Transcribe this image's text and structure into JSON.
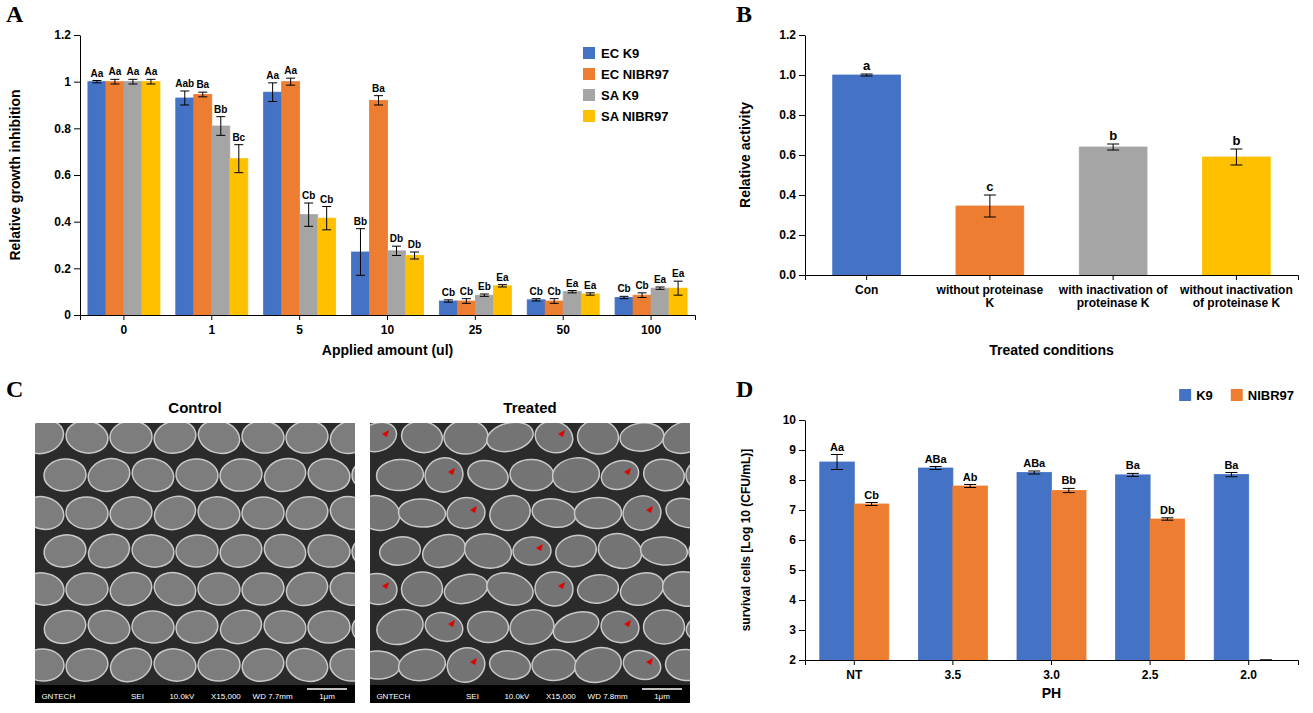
{
  "chart_data": [
    {
      "type": "bar",
      "panel": "A",
      "x_label": "Applied amount (ul)",
      "y_label": "Relative growth inhibition",
      "categories": [
        "0",
        "1",
        "5",
        "10",
        "25",
        "50",
        "100"
      ],
      "ylim": [
        0,
        1.2
      ],
      "yticks": [
        0,
        0.2,
        0.4,
        0.6,
        0.8,
        1,
        1.2
      ],
      "grid": false,
      "legend": "top-right",
      "series": [
        {
          "name": "EC K9",
          "color": "#4472c4",
          "values": [
            1,
            0.93,
            0.955,
            0.27,
            0.06,
            0.065,
            0.075
          ],
          "errors": [
            0.005,
            0.03,
            0.04,
            0.1,
            0.005,
            0.005,
            0.005
          ],
          "letters": [
            "Aa",
            "Aab",
            "Aa",
            "Bb",
            "Cb",
            "Cb",
            "Cb"
          ]
        },
        {
          "name": "EC NIBR97",
          "color": "#ed7d31",
          "values": [
            1,
            0.945,
            1.0,
            0.92,
            0.06,
            0.06,
            0.085
          ],
          "errors": [
            0.01,
            0.01,
            0.015,
            0.02,
            0.01,
            0.01,
            0.01
          ],
          "letters": [
            "Aa",
            "Ba",
            "Aa",
            "Ba",
            "Cb",
            "Cb",
            "Cb"
          ]
        },
        {
          "name": "SA K9",
          "color": "#a5a5a5",
          "values": [
            1,
            0.81,
            0.43,
            0.275,
            0.085,
            0.1,
            0.115
          ],
          "errors": [
            0.01,
            0.04,
            0.05,
            0.02,
            0.005,
            0.005,
            0.005
          ],
          "letters": [
            "Aa",
            "Bb",
            "Cb",
            "Db",
            "Eb",
            "Ea",
            "Ea"
          ]
        },
        {
          "name": "SA NIBR97",
          "color": "#ffc000",
          "values": [
            1,
            0.67,
            0.415,
            0.255,
            0.125,
            0.09,
            0.115
          ],
          "errors": [
            0.01,
            0.06,
            0.05,
            0.015,
            0.005,
            0.005,
            0.03
          ],
          "letters": [
            "Aa",
            "Bc",
            "Cb",
            "Db",
            "Ea",
            "Ea",
            "Ea"
          ]
        }
      ]
    },
    {
      "type": "bar",
      "panel": "B",
      "x_label": "Treated conditions",
      "y_label": "Relative activity",
      "categories": [
        "Con",
        "without proteinase K",
        "with inactivation of proteinase K",
        "without inactivation of proteinase K"
      ],
      "values": [
        1.0,
        0.345,
        0.64,
        0.59
      ],
      "errors": [
        0.005,
        0.055,
        0.015,
        0.04
      ],
      "letters": [
        "a",
        "c",
        "b",
        "b"
      ],
      "colors": [
        "#4472c4",
        "#ed7d31",
        "#a5a5a5",
        "#ffc000"
      ],
      "ylim": [
        0,
        1.2
      ],
      "yticks": [
        {
          "value": 0,
          "label": "0.0"
        },
        0.2,
        0.4,
        0.6,
        0.8,
        {
          "value": 1,
          "label": "1.0"
        },
        1.2
      ],
      "grid": false
    },
    {
      "type": "image",
      "panel": "C",
      "images": [
        {
          "title": "Control",
          "footer": [
            "GNTECH",
            "SEI",
            "10.0kV",
            "X15,000",
            "WD 7.7mm",
            "1μm"
          ]
        },
        {
          "title": "Treated",
          "footer": [
            "GNTECH",
            "SEI",
            "10.0kV",
            "X15,000",
            "WD 7.8mm",
            "1μm"
          ]
        }
      ]
    },
    {
      "type": "bar",
      "panel": "D",
      "x_label": "PH",
      "y_label": "survival cells [Log 10 (CFU/mL)]",
      "categories": [
        "NT",
        "3.5",
        "3.0",
        "2.5",
        "2.0"
      ],
      "ylim": [
        2,
        10
      ],
      "yticks": [
        2,
        3,
        4,
        5,
        6,
        7,
        8,
        9,
        10
      ],
      "grid": false,
      "legend": "top-right",
      "series": [
        {
          "name": "K9",
          "color": "#4472c4",
          "values": [
            8.6,
            8.4,
            8.25,
            8.17,
            8.18
          ],
          "errors": [
            0.25,
            0.05,
            0.05,
            0.05,
            0.07
          ],
          "letters": [
            "Aa",
            "ABa",
            "ABa",
            "Ba",
            "Ba"
          ]
        },
        {
          "name": "NIBR97",
          "color": "#ed7d31",
          "values": [
            7.2,
            7.8,
            7.65,
            6.7,
            2
          ],
          "errors": [
            0.05,
            0.05,
            0.07,
            0.04,
            0
          ],
          "letters": [
            "Cb",
            "Ab",
            "Bb",
            "Db",
            null
          ]
        }
      ]
    }
  ]
}
